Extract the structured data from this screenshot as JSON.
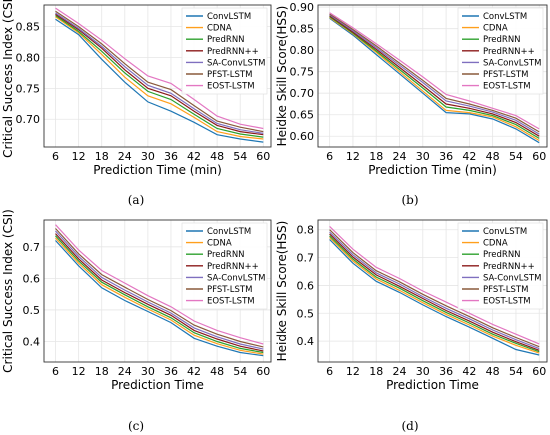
{
  "colors": {
    "ConvLSTM": "#1f77b4",
    "CDNA": "#ff9f1c",
    "PredRNN": "#2ca02c",
    "PredRNN++": "#8b1a1a",
    "SA-ConvLSTM": "#7f6fbf",
    "PFST-LSTM": "#8a5a3c",
    "EOST-LSTM": "#e377c2"
  },
  "chart_data": [
    {
      "type": "line",
      "panel": "(a)",
      "xlabel": "Prediction Time (min)",
      "ylabel": "Critical Success Index (CSI)",
      "x": [
        6,
        12,
        18,
        24,
        30,
        36,
        42,
        48,
        54,
        60
      ],
      "xlim": [
        3,
        62
      ],
      "ylim": [
        0.655,
        0.885
      ],
      "yticks": [
        0.7,
        0.75,
        0.8,
        0.85
      ],
      "yticklabels": [
        "0.70",
        "0.75",
        "0.80",
        "0.85"
      ],
      "grid": true,
      "legend": "top-right",
      "series": [
        {
          "name": "ConvLSTM",
          "values": [
            0.862,
            0.837,
            0.797,
            0.76,
            0.728,
            0.713,
            0.695,
            0.675,
            0.668,
            0.663
          ]
        },
        {
          "name": "CDNA",
          "values": [
            0.866,
            0.84,
            0.805,
            0.768,
            0.738,
            0.725,
            0.703,
            0.68,
            0.672,
            0.668
          ]
        },
        {
          "name": "PredRNN",
          "values": [
            0.868,
            0.842,
            0.81,
            0.775,
            0.745,
            0.732,
            0.708,
            0.685,
            0.676,
            0.671
          ]
        },
        {
          "name": "PredRNN++",
          "values": [
            0.87,
            0.845,
            0.815,
            0.78,
            0.75,
            0.738,
            0.713,
            0.69,
            0.68,
            0.675
          ]
        },
        {
          "name": "SA-ConvLSTM",
          "values": [
            0.872,
            0.847,
            0.818,
            0.785,
            0.755,
            0.742,
            0.717,
            0.693,
            0.683,
            0.677
          ]
        },
        {
          "name": "PFST-LSTM",
          "values": [
            0.875,
            0.85,
            0.822,
            0.79,
            0.76,
            0.748,
            0.722,
            0.697,
            0.687,
            0.68
          ]
        },
        {
          "name": "EOST-LSTM",
          "values": [
            0.88,
            0.855,
            0.828,
            0.798,
            0.77,
            0.758,
            0.732,
            0.705,
            0.692,
            0.685
          ]
        }
      ]
    },
    {
      "type": "line",
      "panel": "(b)",
      "xlabel": "Prediction Time (min)",
      "ylabel": "Heidke Skill Score(HSS)",
      "x": [
        6,
        12,
        18,
        24,
        30,
        36,
        42,
        48,
        54,
        60
      ],
      "xlim": [
        3,
        62
      ],
      "ylim": [
        0.575,
        0.905
      ],
      "yticks": [
        0.6,
        0.65,
        0.7,
        0.75,
        0.8,
        0.85,
        0.9
      ],
      "yticklabels": [
        "0.60",
        "0.65",
        "0.70",
        "0.75",
        "0.80",
        "0.85",
        "0.90"
      ],
      "grid": true,
      "legend": "top-right",
      "series": [
        {
          "name": "ConvLSTM",
          "values": [
            0.874,
            0.835,
            0.79,
            0.745,
            0.7,
            0.655,
            0.652,
            0.64,
            0.617,
            0.585
          ]
        },
        {
          "name": "CDNA",
          "values": [
            0.876,
            0.838,
            0.795,
            0.75,
            0.705,
            0.66,
            0.655,
            0.645,
            0.622,
            0.59
          ]
        },
        {
          "name": "PredRNN",
          "values": [
            0.878,
            0.84,
            0.798,
            0.755,
            0.712,
            0.668,
            0.66,
            0.648,
            0.627,
            0.595
          ]
        },
        {
          "name": "PredRNN++",
          "values": [
            0.88,
            0.842,
            0.802,
            0.76,
            0.718,
            0.675,
            0.665,
            0.652,
            0.632,
            0.6
          ]
        },
        {
          "name": "SA-ConvLSTM",
          "values": [
            0.882,
            0.845,
            0.806,
            0.765,
            0.725,
            0.682,
            0.67,
            0.656,
            0.637,
            0.605
          ]
        },
        {
          "name": "PFST-LSTM",
          "values": [
            0.884,
            0.848,
            0.81,
            0.77,
            0.73,
            0.688,
            0.675,
            0.66,
            0.642,
            0.61
          ]
        },
        {
          "name": "EOST-LSTM",
          "values": [
            0.887,
            0.852,
            0.815,
            0.777,
            0.738,
            0.697,
            0.682,
            0.665,
            0.648,
            0.617
          ]
        }
      ]
    },
    {
      "type": "line",
      "panel": "(c)",
      "xlabel": "Prediction Time",
      "ylabel": "Critical Success Index (CSI)",
      "x": [
        6,
        12,
        18,
        24,
        30,
        36,
        42,
        48,
        54,
        60
      ],
      "xlim": [
        3,
        62
      ],
      "ylim": [
        0.335,
        0.785
      ],
      "yticks": [
        0.4,
        0.5,
        0.6,
        0.7
      ],
      "yticklabels": [
        "0.4",
        "0.5",
        "0.6",
        "0.7"
      ],
      "grid": true,
      "legend": "top-right",
      "series": [
        {
          "name": "ConvLSTM",
          "values": [
            0.72,
            0.64,
            0.57,
            0.53,
            0.495,
            0.46,
            0.41,
            0.385,
            0.365,
            0.355
          ]
        },
        {
          "name": "CDNA",
          "values": [
            0.728,
            0.648,
            0.58,
            0.54,
            0.503,
            0.468,
            0.42,
            0.393,
            0.372,
            0.36
          ]
        },
        {
          "name": "PredRNN",
          "values": [
            0.735,
            0.655,
            0.588,
            0.548,
            0.51,
            0.475,
            0.428,
            0.4,
            0.378,
            0.365
          ]
        },
        {
          "name": "PredRNN++",
          "values": [
            0.742,
            0.662,
            0.595,
            0.555,
            0.518,
            0.483,
            0.435,
            0.408,
            0.385,
            0.37
          ]
        },
        {
          "name": "SA-ConvLSTM",
          "values": [
            0.75,
            0.67,
            0.603,
            0.563,
            0.525,
            0.49,
            0.443,
            0.415,
            0.392,
            0.376
          ]
        },
        {
          "name": "PFST-LSTM",
          "values": [
            0.758,
            0.678,
            0.612,
            0.572,
            0.533,
            0.498,
            0.452,
            0.423,
            0.4,
            0.383
          ]
        },
        {
          "name": "EOST-LSTM",
          "values": [
            0.77,
            0.69,
            0.625,
            0.585,
            0.545,
            0.51,
            0.465,
            0.435,
            0.412,
            0.392
          ]
        }
      ]
    },
    {
      "type": "line",
      "panel": "(d)",
      "xlabel": "Prediction Time",
      "ylabel": "Heidke Skill Score(HSS)",
      "x": [
        6,
        12,
        18,
        24,
        30,
        36,
        42,
        48,
        54,
        60
      ],
      "xlim": [
        3,
        62
      ],
      "ylim": [
        0.325,
        0.835
      ],
      "yticks": [
        0.4,
        0.5,
        0.6,
        0.7,
        0.8
      ],
      "yticklabels": [
        "0.4",
        "0.5",
        "0.6",
        "0.7",
        "0.8"
      ],
      "grid": true,
      "legend": "top-right",
      "series": [
        {
          "name": "ConvLSTM",
          "values": [
            0.765,
            0.68,
            0.615,
            0.575,
            0.53,
            0.488,
            0.45,
            0.41,
            0.37,
            0.35
          ]
        },
        {
          "name": "CDNA",
          "values": [
            0.772,
            0.688,
            0.623,
            0.582,
            0.538,
            0.496,
            0.458,
            0.418,
            0.385,
            0.357
          ]
        },
        {
          "name": "PredRNN",
          "values": [
            0.778,
            0.695,
            0.63,
            0.59,
            0.545,
            0.503,
            0.465,
            0.425,
            0.392,
            0.362
          ]
        },
        {
          "name": "PredRNN++",
          "values": [
            0.785,
            0.702,
            0.638,
            0.597,
            0.553,
            0.51,
            0.472,
            0.432,
            0.398,
            0.367
          ]
        },
        {
          "name": "SA-ConvLSTM",
          "values": [
            0.792,
            0.71,
            0.645,
            0.605,
            0.56,
            0.518,
            0.48,
            0.44,
            0.405,
            0.373
          ]
        },
        {
          "name": "PFST-LSTM",
          "values": [
            0.8,
            0.718,
            0.653,
            0.613,
            0.568,
            0.527,
            0.488,
            0.448,
            0.413,
            0.38
          ]
        },
        {
          "name": "EOST-LSTM",
          "values": [
            0.812,
            0.73,
            0.665,
            0.625,
            0.58,
            0.54,
            0.5,
            0.46,
            0.425,
            0.39
          ]
        }
      ]
    }
  ]
}
